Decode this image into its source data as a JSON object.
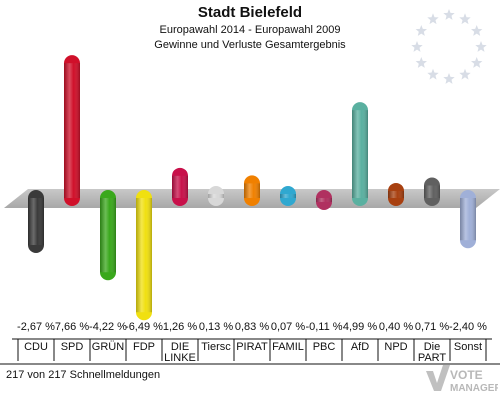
{
  "header": {
    "title": "Stadt Bielefeld",
    "subtitle": "Europawahl 2014 - Europawahl 2009",
    "subtitle2": "Gewinne und Verluste Gesamtergebnis"
  },
  "footer": {
    "count_text": "217 von 217 Schnellmeldungen",
    "brand_line1": "VOTE",
    "brand_line2": "MANAGER"
  },
  "chart_data": {
    "type": "bar",
    "title": "Stadt Bielefeld",
    "subtitle": "Europawahl 2014 - Europawahl 2009 / Gewinne und Verluste Gesamtergebnis",
    "unit": "%",
    "categories": [
      "CDU",
      "SPD",
      "GRÜNE",
      "FDP",
      "DIE LINKE",
      "Tierschutz",
      "PIRATEN",
      "FAMILIE",
      "PBC",
      "AfD",
      "NPD",
      "Die PARTEI",
      "Sonst."
    ],
    "category_labels": [
      "CDU",
      "SPD",
      "GRÜN",
      "FDP",
      "DIE\nLINKE",
      "Tiersc",
      "PIRAT",
      "FAMIL",
      "PBC",
      "AfD",
      "NPD",
      "Die\nPART",
      "Sonst"
    ],
    "values": [
      -2.67,
      7.66,
      -4.22,
      -6.49,
      1.26,
      0.13,
      0.83,
      0.07,
      -0.11,
      4.99,
      0.4,
      0.71,
      -2.4
    ],
    "value_labels": [
      "-2,67 %",
      "7,66 %",
      "-4,22 %",
      "-6,49 %",
      "1,26 %",
      "0,13 %",
      "0,83 %",
      "0,07 %",
      "-0,11 %",
      "4,99 %",
      "0,40 %",
      "0,71 %",
      "-2,40 %"
    ],
    "colors": [
      "#3a3a3a",
      "#d0102a",
      "#3aa81c",
      "#f0e010",
      "#c8104a",
      "#d8d8d8",
      "#f08000",
      "#30a8d0",
      "#b03060",
      "#5ab0a0",
      "#a84010",
      "#606060",
      "#a0b0d8"
    ]
  }
}
